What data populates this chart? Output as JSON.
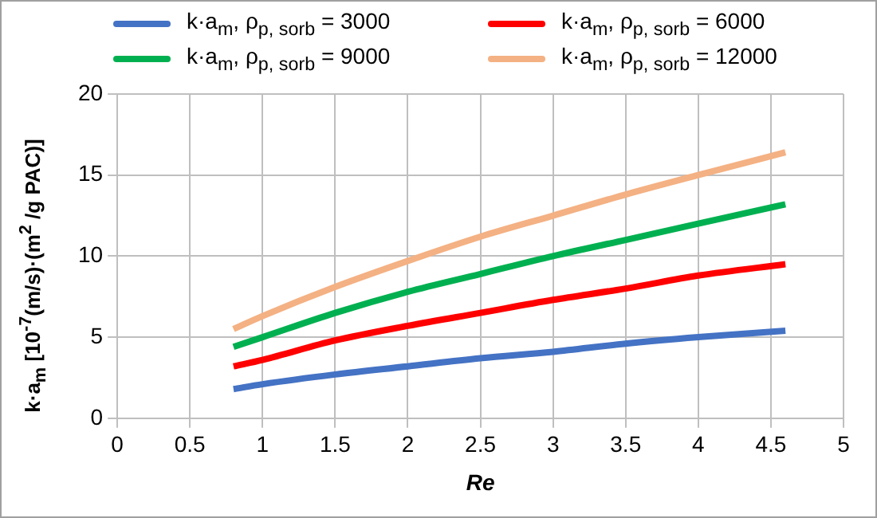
{
  "chart_data": {
    "type": "line",
    "xlabel": "Re",
    "ylabel": "k·a$_{m}$ [10$^{-7}$(m/s)·(m$^{2}$ /g PAC)]",
    "x": [
      0.8,
      1,
      1.5,
      2,
      2.5,
      3,
      3.5,
      4,
      4.6
    ],
    "series": [
      {
        "name": "k·a$_{m}$, ρ$_{p, sorb}$ = 3000",
        "color": "#4472c4",
        "values": [
          1.8,
          2.1,
          2.7,
          3.2,
          3.7,
          4.1,
          4.6,
          5.0,
          5.4
        ]
      },
      {
        "name": "k·a$_{m}$, ρ$_{p, sorb}$ = 6000",
        "color": "#ff0000",
        "values": [
          3.2,
          3.6,
          4.8,
          5.7,
          6.5,
          7.3,
          8.0,
          8.8,
          9.5
        ]
      },
      {
        "name": "k·a$_{m}$, ρ$_{p, sorb}$ = 9000",
        "color": "#00b050",
        "values": [
          4.4,
          5.0,
          6.5,
          7.8,
          8.9,
          10.0,
          11.0,
          12.0,
          13.2
        ]
      },
      {
        "name": "k·a$_{m}$, ρ$_{p, sorb}$ = 12000",
        "color": "#f4b183",
        "values": [
          5.5,
          6.3,
          8.1,
          9.7,
          11.2,
          12.5,
          13.8,
          15.0,
          16.4
        ]
      }
    ],
    "xlim": [
      0,
      5
    ],
    "xticks": [
      0,
      0.5,
      1,
      1.5,
      2,
      2.5,
      3,
      3.5,
      4,
      4.5,
      5
    ],
    "ylim": [
      0,
      20
    ],
    "yticks": [
      0,
      5,
      10,
      15,
      20
    ],
    "grid": true,
    "legend": "top",
    "marker": "none",
    "line_style": "solid"
  }
}
